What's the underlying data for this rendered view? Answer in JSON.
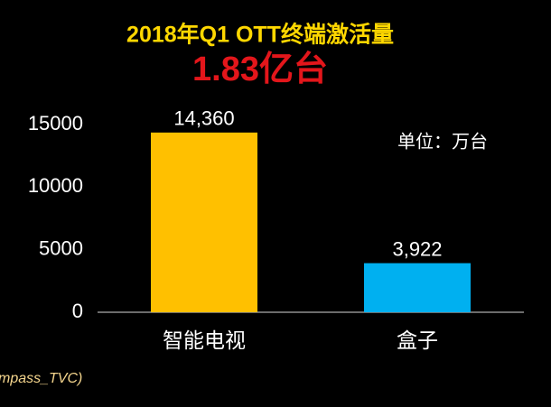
{
  "chart_data": {
    "type": "bar",
    "title": "2018年Q1 OTT终端激活量",
    "subtitle": "1.83亿台",
    "annotation": "单位：万台",
    "source": "mpass_TVC)",
    "categories": [
      "智能电视",
      "盒子"
    ],
    "values": [
      14360,
      3922
    ],
    "value_labels": [
      "14,360",
      "3,922"
    ],
    "colors": [
      "#ffc000",
      "#00b0f0"
    ],
    "ylim": [
      0,
      15000
    ],
    "yticks": [
      0,
      5000,
      10000,
      15000
    ],
    "grid": false
  }
}
